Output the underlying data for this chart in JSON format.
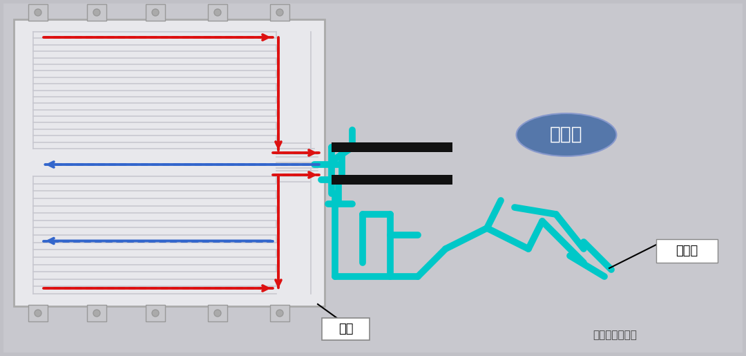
{
  "bg_color": "#c0c0c6",
  "battery_face": "#e8e8ec",
  "battery_border": "#aaaaaa",
  "channel_line": "#c8c8d0",
  "red_color": "#dd1111",
  "blue_color": "#3366cc",
  "cyan_color": "#00c8c8",
  "black_color": "#111111",
  "oval_fill": "#5577aa",
  "oval_text": "压缩机",
  "box1_text": "压缩机",
  "box2_text": "冷媒",
  "watermark": "换个角度看车市",
  "tab_color": "#c8c8cc",
  "tab_border": "#999999"
}
